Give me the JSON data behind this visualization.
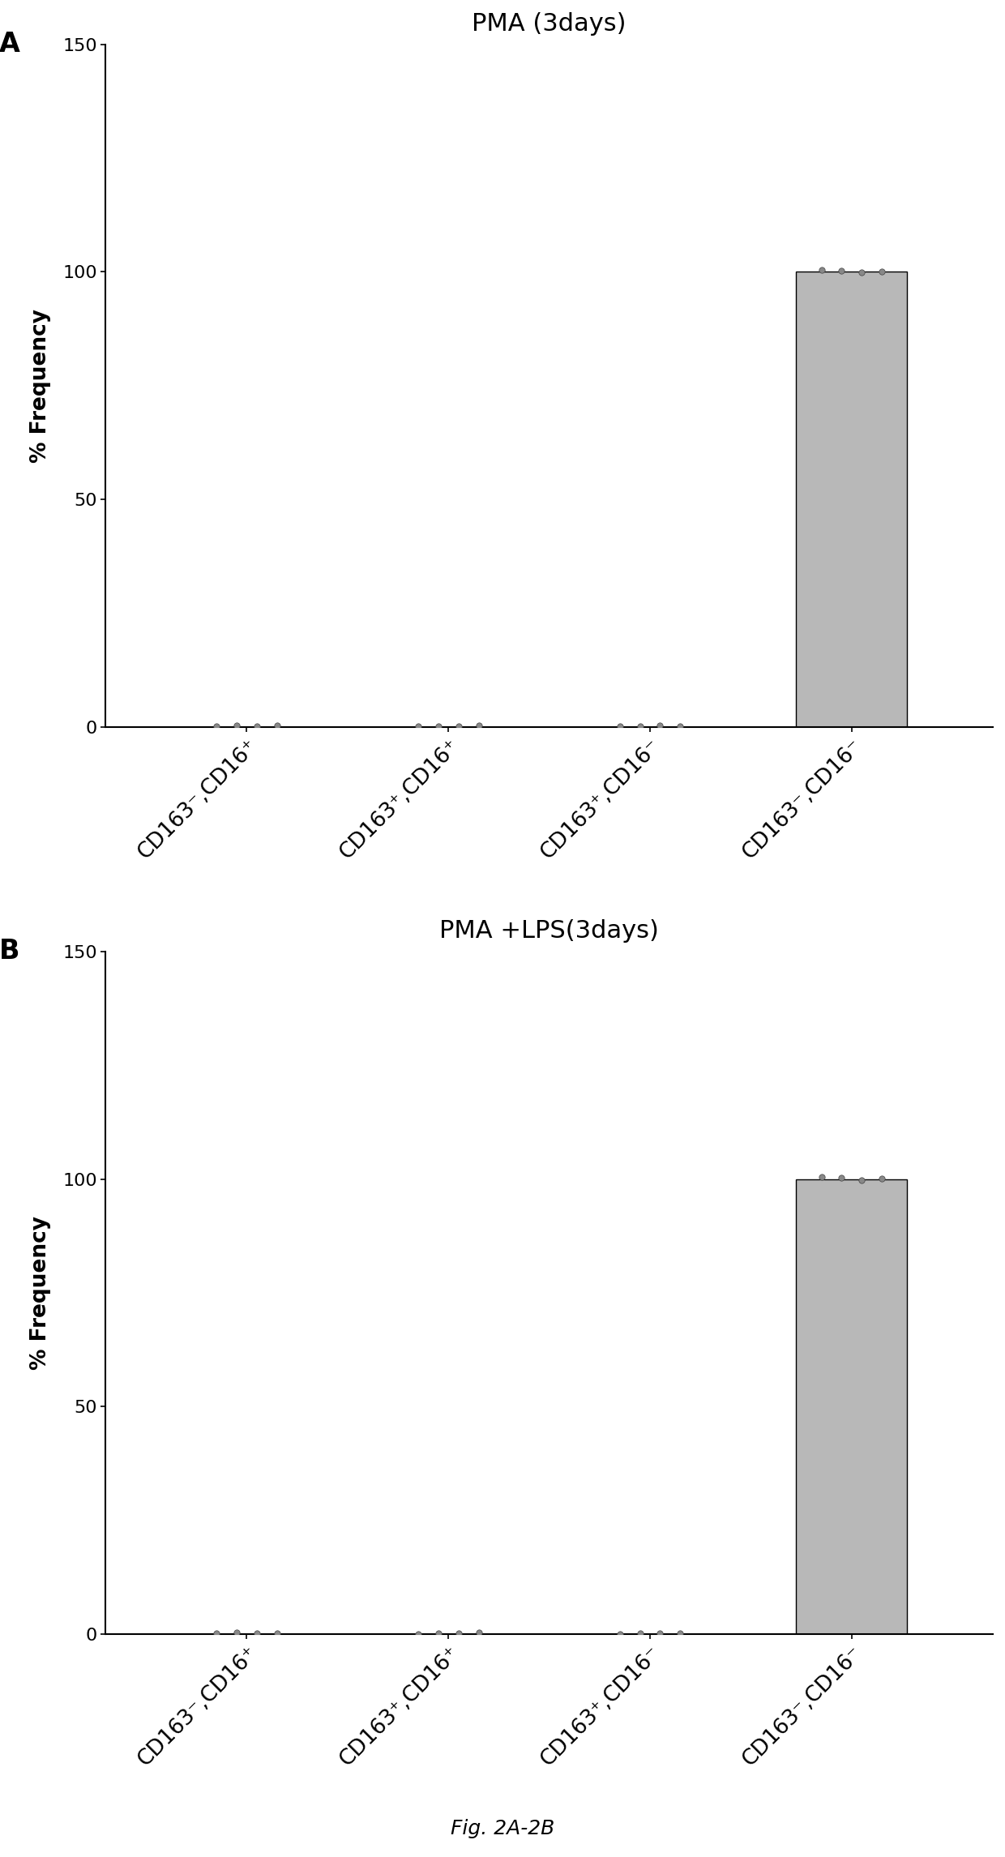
{
  "panel_A": {
    "title": "PMA (3days)",
    "panel_label": "A",
    "categories": [
      "CD163⁻,CD16⁺",
      "CD163⁺,CD16⁺",
      "CD163⁺,CD16⁻",
      "CD163⁻,CD16⁻"
    ],
    "bar_values": [
      0.0,
      0.0,
      0.0,
      100.0
    ],
    "bar_color": "#b8b8b8",
    "scatter_points": [
      [
        0.85,
        0.95,
        1.05,
        1.15
      ],
      [
        1.85,
        1.95,
        2.05,
        2.15
      ],
      [
        2.85,
        2.95,
        3.05,
        3.15
      ],
      [
        3.85,
        3.95,
        4.05,
        4.15
      ]
    ],
    "scatter_values": [
      [
        0.2,
        0.3,
        0.15,
        0.25
      ],
      [
        0.1,
        0.2,
        0.15,
        0.3
      ],
      [
        0.1,
        0.2,
        0.25,
        0.15
      ],
      [
        100.5,
        100.3,
        99.8,
        100.1
      ]
    ],
    "ylim": [
      0,
      150
    ],
    "yticks": [
      0,
      50,
      100,
      150
    ],
    "ylabel": "% Frequency"
  },
  "panel_B": {
    "title": "PMA +LPS(3days)",
    "panel_label": "B",
    "categories": [
      "CD163⁻,CD16⁺",
      "CD163⁺,CD16⁺",
      "CD163⁺,CD16⁻",
      "CD163⁻,CD16⁻"
    ],
    "bar_values": [
      0.0,
      0.0,
      0.0,
      100.0
    ],
    "bar_color": "#b8b8b8",
    "scatter_points": [
      [
        0.85,
        0.95,
        1.05,
        1.15
      ],
      [
        1.85,
        1.95,
        2.05,
        2.15
      ],
      [
        2.85,
        2.95,
        3.05,
        3.15
      ],
      [
        3.85,
        3.95,
        4.05,
        4.15
      ]
    ],
    "scatter_values": [
      [
        0.2,
        0.3,
        0.15,
        0.25
      ],
      [
        0.1,
        0.2,
        0.15,
        0.3
      ],
      [
        0.1,
        0.2,
        0.25,
        0.15
      ],
      [
        100.5,
        100.3,
        99.8,
        100.1
      ]
    ],
    "ylim": [
      0,
      150
    ],
    "yticks": [
      0,
      50,
      100,
      150
    ],
    "ylabel": "% Frequency"
  },
  "figure_label": "Fig. 2A-2B",
  "background_color": "#ffffff",
  "scatter_color": "#888888",
  "scatter_size": 28,
  "bar_width": 0.55,
  "bar_edge_color": "#000000",
  "title_fontsize": 22,
  "label_fontsize": 19,
  "tick_fontsize": 16,
  "panel_label_fontsize": 24,
  "xtick_rotation": 45,
  "figure_label_fontsize": 18
}
